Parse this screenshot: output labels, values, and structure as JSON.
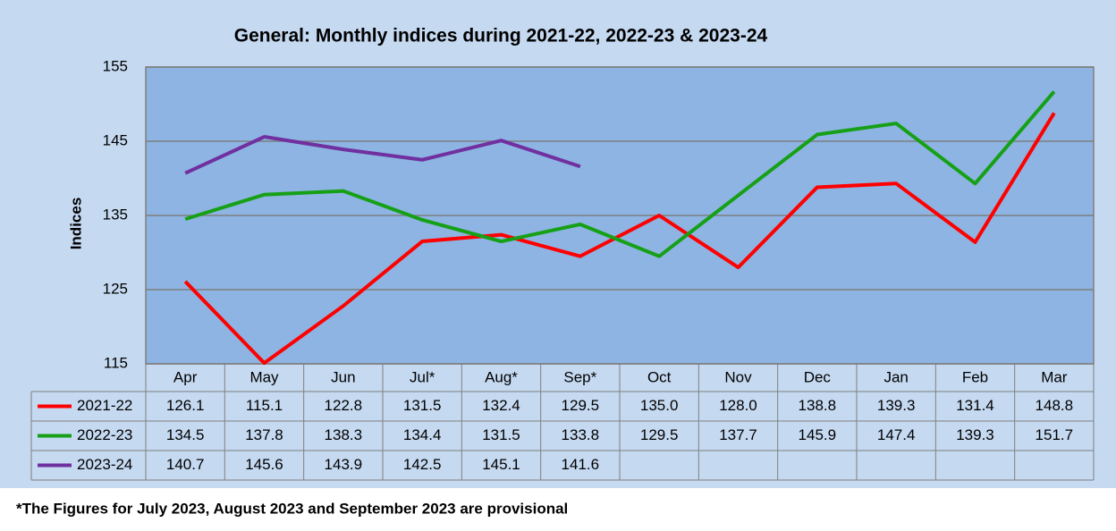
{
  "chart_data": {
    "type": "line",
    "title": "General: Monthly indices during 2021-22, 2022-23 & 2023-24",
    "y_label": "Indices",
    "categories": [
      "Apr",
      "May",
      "Jun",
      "Jul*",
      "Aug*",
      "Sep*",
      "Oct",
      "Nov",
      "Dec",
      "Jan",
      "Feb",
      "Mar"
    ],
    "series": [
      {
        "name": "2021-22",
        "color": "#ff0000",
        "values": [
          126.1,
          115.1,
          122.8,
          131.5,
          132.4,
          129.5,
          135.0,
          128.0,
          138.8,
          139.3,
          131.4,
          148.8
        ],
        "value_labels": [
          "126.1",
          "115.1",
          "122.8",
          "131.5",
          "132.4",
          "129.5",
          "135.0",
          "128.0",
          "138.8",
          "139.3",
          "131.4",
          "148.8"
        ]
      },
      {
        "name": "2022-23",
        "color": "#16a016",
        "values": [
          134.5,
          137.8,
          138.3,
          134.4,
          131.5,
          133.8,
          129.5,
          137.7,
          145.9,
          147.4,
          139.3,
          151.7
        ],
        "value_labels": [
          "134.5",
          "137.8",
          "138.3",
          "134.4",
          "131.5",
          "133.8",
          "129.5",
          "137.7",
          "145.9",
          "147.4",
          "139.3",
          "151.7"
        ]
      },
      {
        "name": "2023-24",
        "color": "#7030a0",
        "values": [
          140.7,
          145.6,
          143.9,
          142.5,
          145.1,
          141.6,
          null,
          null,
          null,
          null,
          null,
          null
        ],
        "value_labels": [
          "140.7",
          "145.6",
          "143.9",
          "142.5",
          "145.1",
          "141.6",
          null,
          null,
          null,
          null,
          null,
          null
        ]
      }
    ],
    "ylim": [
      115,
      155
    ],
    "yticks": [
      115,
      125,
      135,
      145,
      155
    ],
    "grid": true,
    "footnote": "*The Figures for July 2023, August 2023 and September 2023 are provisional"
  }
}
